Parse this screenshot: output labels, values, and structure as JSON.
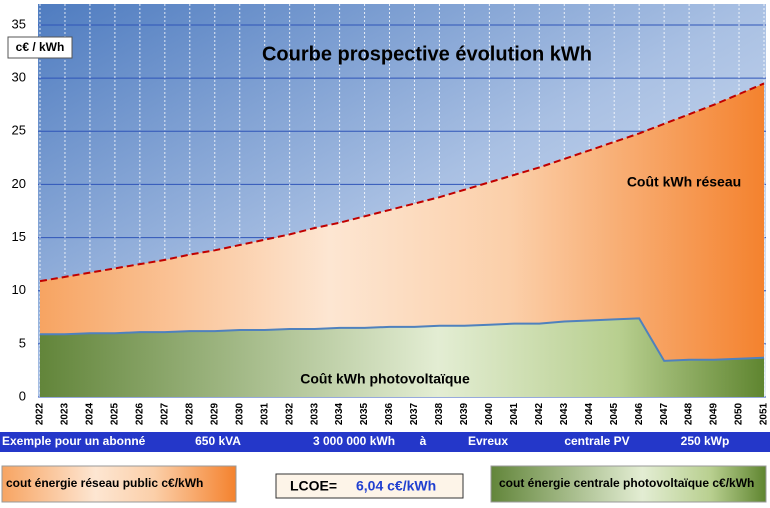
{
  "chart_data": {
    "type": "area",
    "title": "Courbe prospective évolution kWh",
    "y_label": "c€ / kWh",
    "categories": [
      "2022",
      "2023",
      "2024",
      "2025",
      "2026",
      "2027",
      "2028",
      "2029",
      "2030",
      "2031",
      "2032",
      "2033",
      "2034",
      "2035",
      "2036",
      "2037",
      "2038",
      "2039",
      "2040",
      "2041",
      "2042",
      "2043",
      "2044",
      "2045",
      "2046",
      "2047",
      "2048",
      "2049",
      "2050",
      "2051"
    ],
    "series": [
      {
        "name": "cout énergie réseau public c€/kWh",
        "color": "#f79646",
        "line_color": "#c00000",
        "line_style": "dashed",
        "values": [
          10.9,
          11.3,
          11.7,
          12.1,
          12.5,
          12.9,
          13.4,
          13.8,
          14.3,
          14.8,
          15.3,
          15.9,
          16.4,
          17.0,
          17.6,
          18.2,
          18.8,
          19.5,
          20.2,
          20.9,
          21.6,
          22.4,
          23.2,
          24.0,
          24.8,
          25.7,
          26.6,
          27.5,
          28.5,
          29.5
        ]
      },
      {
        "name": "cout énergie centrale photovoltaïque c€/kWh",
        "color": "#76933c",
        "line_color": "#4f81bd",
        "line_style": "solid",
        "values": [
          5.9,
          5.9,
          6.0,
          6.0,
          6.1,
          6.1,
          6.2,
          6.2,
          6.3,
          6.3,
          6.4,
          6.4,
          6.5,
          6.5,
          6.6,
          6.6,
          6.7,
          6.7,
          6.8,
          6.9,
          6.9,
          7.1,
          7.2,
          7.3,
          7.4,
          3.4,
          3.5,
          3.5,
          3.6,
          3.7
        ]
      }
    ],
    "annotations": [
      "Coût kWh réseau",
      "Coût kWh photovoltaïque"
    ],
    "ylim": [
      0,
      35
    ],
    "yticks": [
      0,
      5,
      10,
      15,
      20,
      25,
      30,
      35
    ],
    "grid": true
  },
  "info_band": [
    "Exemple pour un abonné",
    "650 kVA",
    "3 000 000 kWh",
    "à",
    "Evreux",
    "centrale PV",
    "250 kWp"
  ],
  "lcoe": {
    "label": "LCOE=",
    "value": "6,04 c€/kWh"
  }
}
